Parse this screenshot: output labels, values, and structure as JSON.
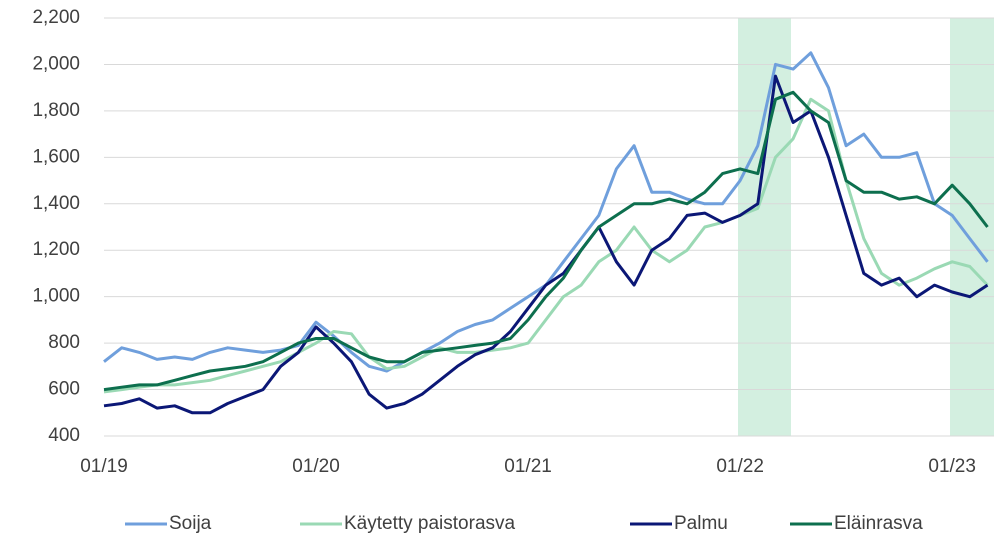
{
  "chart_data": {
    "type": "line",
    "categories": [
      "01/19",
      null,
      null,
      null,
      null,
      null,
      null,
      null,
      null,
      null,
      null,
      null,
      "01/20",
      null,
      null,
      null,
      null,
      null,
      null,
      null,
      null,
      null,
      null,
      null,
      "01/21",
      null,
      null,
      null,
      null,
      null,
      null,
      null,
      null,
      null,
      null,
      null,
      "01/22",
      null,
      null,
      null,
      null,
      null,
      null,
      null,
      null,
      null,
      null,
      null,
      "01/23",
      null,
      null
    ],
    "series": [
      {
        "name": "Soija",
        "color": "#6f9fdc",
        "values": [
          720,
          780,
          760,
          730,
          740,
          730,
          760,
          780,
          770,
          760,
          770,
          790,
          890,
          830,
          760,
          700,
          680,
          720,
          760,
          800,
          850,
          880,
          900,
          950,
          1000,
          1050,
          1150,
          1250,
          1350,
          1550,
          1650,
          1450,
          1450,
          1420,
          1400,
          1400,
          1500,
          1650,
          2000,
          1980,
          2050,
          1900,
          1650,
          1700,
          1600,
          1600,
          1620,
          1400,
          1350,
          1250,
          1150
        ]
      },
      {
        "name": "Käytetty paistorasva",
        "color": "#9ad9b4",
        "values": [
          590,
          600,
          610,
          620,
          620,
          630,
          640,
          660,
          680,
          700,
          720,
          760,
          800,
          850,
          840,
          740,
          690,
          700,
          740,
          780,
          760,
          760,
          770,
          780,
          800,
          900,
          1000,
          1050,
          1150,
          1200,
          1300,
          1200,
          1150,
          1200,
          1300,
          1320,
          1350,
          1380,
          1600,
          1680,
          1850,
          1800,
          1500,
          1250,
          1100,
          1050,
          1080,
          1120,
          1150,
          1130,
          1050
        ]
      },
      {
        "name": "Palmu",
        "color": "#0b1776",
        "values": [
          530,
          540,
          560,
          520,
          530,
          500,
          500,
          540,
          570,
          600,
          700,
          760,
          870,
          800,
          720,
          580,
          520,
          540,
          580,
          640,
          700,
          750,
          780,
          850,
          950,
          1050,
          1100,
          1200,
          1300,
          1150,
          1050,
          1200,
          1250,
          1350,
          1360,
          1320,
          1350,
          1400,
          1950,
          1750,
          1800,
          1600,
          1350,
          1100,
          1050,
          1080,
          1000,
          1050,
          1020,
          1000,
          1050
        ]
      },
      {
        "name": "Eläinrasva",
        "color": "#0d6f4e",
        "values": [
          600,
          610,
          620,
          620,
          640,
          660,
          680,
          690,
          700,
          720,
          760,
          800,
          820,
          820,
          780,
          740,
          720,
          720,
          760,
          770,
          780,
          790,
          800,
          820,
          900,
          1000,
          1080,
          1200,
          1300,
          1350,
          1400,
          1400,
          1420,
          1400,
          1450,
          1530,
          1550,
          1530,
          1850,
          1880,
          1800,
          1750,
          1500,
          1450,
          1450,
          1420,
          1430,
          1400,
          1480,
          1400,
          1300
        ]
      }
    ],
    "ylim": [
      400,
      2200
    ],
    "yticks": [
      400,
      600,
      800,
      {
        "value": 1000,
        "label": "1,000"
      },
      {
        "value": 1200,
        "label": "1,200"
      },
      {
        "value": 1400,
        "label": "1,400"
      },
      {
        "value": 1600,
        "label": "1,600"
      },
      {
        "value": 1800,
        "label": "1,800"
      },
      {
        "value": 2000,
        "label": "2,000"
      },
      {
        "value": 2200,
        "label": "2,200"
      }
    ],
    "grid": true
  }
}
